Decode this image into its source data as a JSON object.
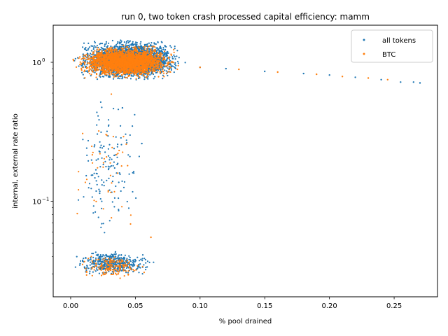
{
  "chart_data": {
    "type": "scatter",
    "title": "run 0, two token crash processed capital efficiency: mamm",
    "xlabel": "% pool drained",
    "ylabel": "internal, external rate ratio",
    "xlim": [
      -0.0135,
      0.2835
    ],
    "ylim": [
      0.0205,
      1.85
    ],
    "yscale": "log",
    "grid": false,
    "legend_position": "upper right",
    "x_ticks": [
      {
        "value": 0.0,
        "label": "0.00"
      },
      {
        "value": 0.05,
        "label": "0.05"
      },
      {
        "value": 0.1,
        "label": "0.10"
      },
      {
        "value": 0.15,
        "label": "0.15"
      },
      {
        "value": 0.2,
        "label": "0.20"
      },
      {
        "value": 0.25,
        "label": "0.25"
      }
    ],
    "y_ticks": [
      {
        "value": 0.1,
        "label": "10",
        "exponent": "−1"
      },
      {
        "value": 1.0,
        "label": "10",
        "exponent": "0"
      }
    ],
    "series": [
      {
        "name": "all tokens",
        "color": "#1f77b4",
        "clusters": [
          {
            "x": [
              0.0,
              0.09
            ],
            "y": [
              0.72,
              1.5
            ],
            "count": 3000
          },
          {
            "x": [
              0.0,
              0.065
            ],
            "y": [
              0.028,
              0.045
            ],
            "count": 450
          },
          {
            "x": [
              0.0,
              0.06
            ],
            "y": [
              0.045,
              0.7
            ],
            "count": 140
          }
        ],
        "points": [
          [
            0.1,
            0.92
          ],
          [
            0.12,
            0.9
          ],
          [
            0.15,
            0.86
          ],
          [
            0.18,
            0.83
          ],
          [
            0.2,
            0.81
          ],
          [
            0.22,
            0.78
          ],
          [
            0.24,
            0.75
          ],
          [
            0.255,
            0.72
          ],
          [
            0.265,
            0.72
          ],
          [
            0.27,
            0.71
          ],
          [
            0.055,
            0.26
          ],
          [
            0.04,
            0.47
          ]
        ]
      },
      {
        "name": "BTC",
        "color": "#ff7f0e",
        "clusters": [
          {
            "x": [
              0.0,
              0.085
            ],
            "y": [
              0.75,
              1.35
            ],
            "count": 2500
          },
          {
            "x": [
              0.005,
              0.06
            ],
            "y": [
              0.027,
              0.042
            ],
            "count": 160
          },
          {
            "x": [
              0.0,
              0.06
            ],
            "y": [
              0.05,
              0.6
            ],
            "count": 45
          }
        ],
        "points": [
          [
            0.1,
            0.92
          ],
          [
            0.13,
            0.89
          ],
          [
            0.16,
            0.85
          ],
          [
            0.19,
            0.82
          ],
          [
            0.21,
            0.79
          ],
          [
            0.23,
            0.77
          ],
          [
            0.245,
            0.75
          ],
          [
            0.062,
            0.055
          ]
        ]
      }
    ]
  }
}
